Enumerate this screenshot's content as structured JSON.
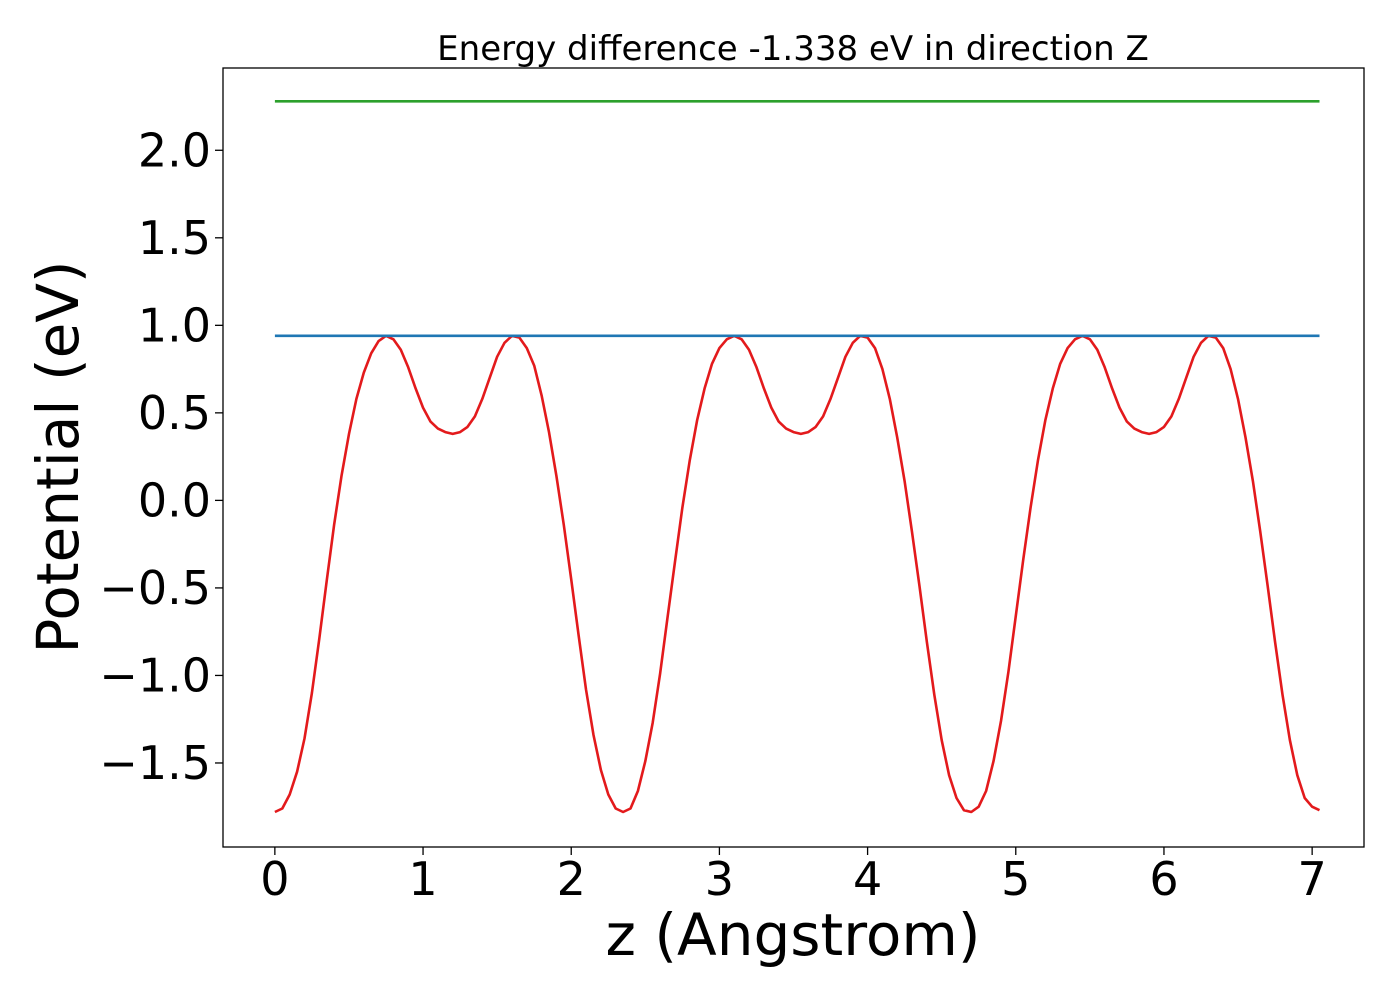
{
  "chart_data": {
    "type": "line",
    "title": "Energy difference -1.338 eV in direction Z",
    "xlabel": "z (Angstrom)",
    "ylabel": "Potential (eV)",
    "xlim": [
      -0.35,
      7.35
    ],
    "ylim": [
      -1.98,
      2.47
    ],
    "x_ticks": [
      0,
      1,
      2,
      3,
      4,
      5,
      6,
      7
    ],
    "x_tick_labels": [
      "0",
      "1",
      "2",
      "3",
      "4",
      "5",
      "6",
      "7"
    ],
    "y_ticks": [
      -1.5,
      -1.0,
      -0.5,
      0.0,
      0.5,
      1.0,
      1.5,
      2.0
    ],
    "y_tick_labels": [
      "−1.5",
      "−1.0",
      "−0.5",
      "0.0",
      "0.5",
      "1.0",
      "1.5",
      "2.0"
    ],
    "grid": false,
    "legend": "none",
    "series": [
      {
        "color": "#e31a1c",
        "x": [
          0.0,
          0.05,
          0.1,
          0.15,
          0.2,
          0.25,
          0.3,
          0.35,
          0.4,
          0.45,
          0.5,
          0.55,
          0.6,
          0.65,
          0.7,
          0.75,
          0.8,
          0.85,
          0.9,
          0.95,
          1.0,
          1.05,
          1.1,
          1.15,
          1.2,
          1.25,
          1.3,
          1.35,
          1.4,
          1.45,
          1.5,
          1.55,
          1.6,
          1.65,
          1.7,
          1.75,
          1.8,
          1.85,
          1.9,
          1.95,
          2.0,
          2.05,
          2.1,
          2.15,
          2.2,
          2.25,
          2.3,
          2.35,
          2.4,
          2.45,
          2.5,
          2.55,
          2.6,
          2.65,
          2.7,
          2.75,
          2.8,
          2.85,
          2.9,
          2.95,
          3.0,
          3.05,
          3.1,
          3.15,
          3.2,
          3.25,
          3.3,
          3.35,
          3.4,
          3.45,
          3.5,
          3.55,
          3.6,
          3.65,
          3.7,
          3.75,
          3.8,
          3.85,
          3.9,
          3.95,
          4.0,
          4.05,
          4.1,
          4.15,
          4.2,
          4.25,
          4.3,
          4.35,
          4.4,
          4.45,
          4.5,
          4.55,
          4.6,
          4.65,
          4.7,
          4.75,
          4.8,
          4.85,
          4.9,
          4.95,
          5.0,
          5.05,
          5.1,
          5.15,
          5.2,
          5.25,
          5.3,
          5.35,
          5.4,
          5.45,
          5.5,
          5.55,
          5.6,
          5.65,
          5.7,
          5.75,
          5.8,
          5.85,
          5.9,
          5.95,
          6.0,
          6.05,
          6.1,
          6.15,
          6.2,
          6.25,
          6.3,
          6.35,
          6.4,
          6.45,
          6.5,
          6.55,
          6.6,
          6.65,
          6.7,
          6.75,
          6.8,
          6.85,
          6.9,
          6.95,
          7.0,
          7.05
        ],
        "y": [
          -1.78,
          -1.76,
          -1.68,
          -1.55,
          -1.36,
          -1.1,
          -0.79,
          -0.46,
          -0.14,
          0.14,
          0.38,
          0.58,
          0.73,
          0.84,
          0.91,
          0.94,
          0.92,
          0.86,
          0.76,
          0.64,
          0.53,
          0.45,
          0.41,
          0.39,
          0.38,
          0.39,
          0.42,
          0.48,
          0.58,
          0.7,
          0.82,
          0.9,
          0.94,
          0.93,
          0.87,
          0.77,
          0.6,
          0.39,
          0.14,
          -0.14,
          -0.45,
          -0.77,
          -1.08,
          -1.34,
          -1.54,
          -1.68,
          -1.76,
          -1.78,
          -1.76,
          -1.66,
          -1.49,
          -1.27,
          -0.99,
          -0.67,
          -0.35,
          -0.04,
          0.23,
          0.46,
          0.64,
          0.78,
          0.87,
          0.92,
          0.94,
          0.92,
          0.86,
          0.76,
          0.64,
          0.53,
          0.45,
          0.41,
          0.39,
          0.38,
          0.39,
          0.42,
          0.48,
          0.58,
          0.7,
          0.82,
          0.9,
          0.94,
          0.93,
          0.87,
          0.75,
          0.58,
          0.36,
          0.11,
          -0.18,
          -0.49,
          -0.81,
          -1.11,
          -1.37,
          -1.57,
          -1.7,
          -1.77,
          -1.78,
          -1.75,
          -1.66,
          -1.49,
          -1.26,
          -0.98,
          -0.66,
          -0.34,
          -0.04,
          0.23,
          0.46,
          0.64,
          0.78,
          0.87,
          0.92,
          0.94,
          0.92,
          0.86,
          0.76,
          0.64,
          0.53,
          0.45,
          0.41,
          0.39,
          0.38,
          0.39,
          0.42,
          0.48,
          0.58,
          0.7,
          0.82,
          0.9,
          0.94,
          0.93,
          0.87,
          0.75,
          0.58,
          0.36,
          0.11,
          -0.18,
          -0.49,
          -0.81,
          -1.11,
          -1.37,
          -1.57,
          -1.7,
          -1.75,
          -1.77
        ]
      },
      {
        "color": "#1f77b4",
        "x": [
          0,
          7.05
        ],
        "y": [
          0.94,
          0.94
        ]
      },
      {
        "color": "#2ca02c",
        "x": [
          0,
          7.05
        ],
        "y": [
          2.28,
          2.28
        ]
      }
    ]
  }
}
